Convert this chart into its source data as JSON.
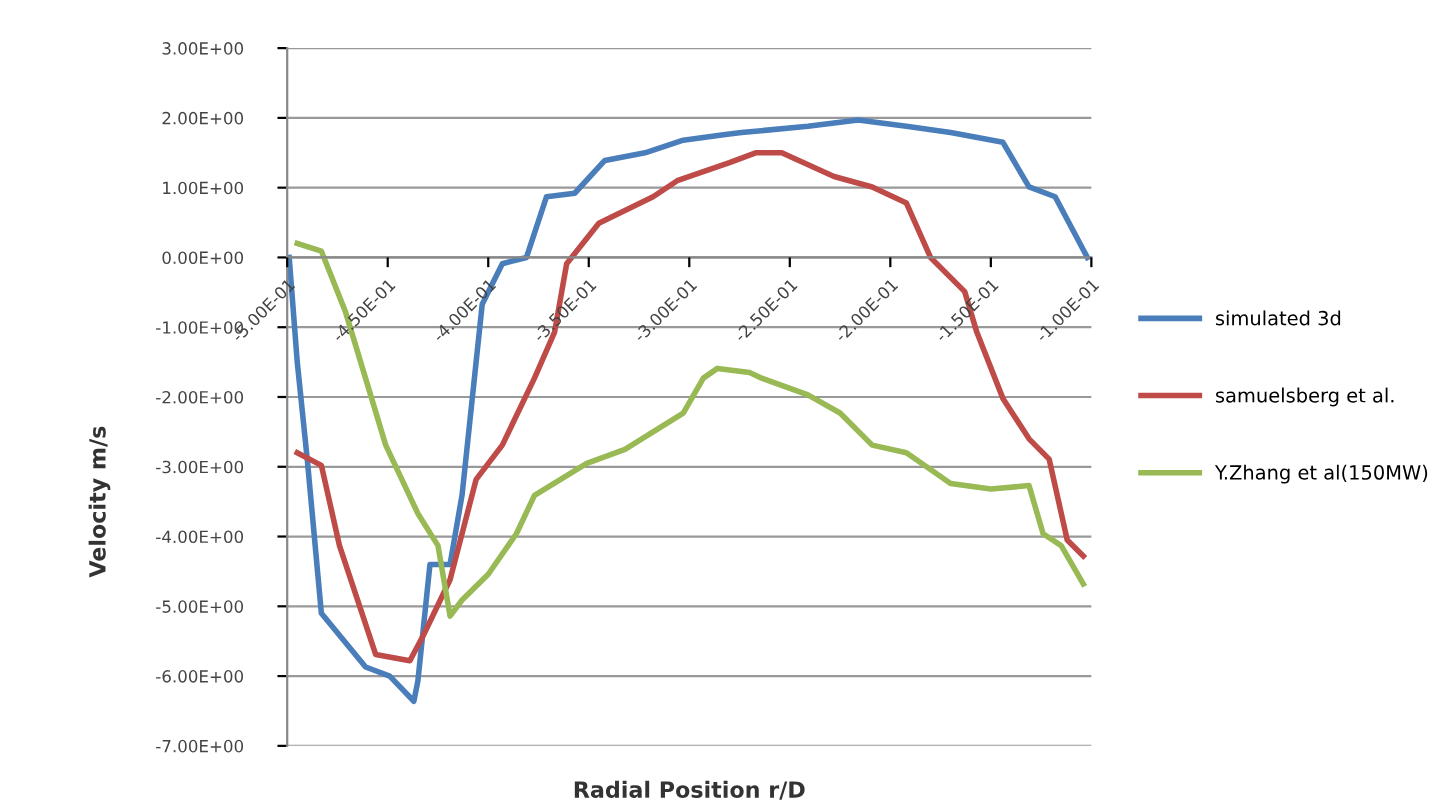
{
  "chart_data": {
    "type": "line",
    "xlabel": "Radial Position r/D",
    "ylabel": "Velocity m/s",
    "xlim": [
      -0.5,
      -0.1
    ],
    "ylim": [
      -7,
      3
    ],
    "xticks": [
      {
        "value": -0.5,
        "label": "-5.00E-01"
      },
      {
        "value": -0.45,
        "label": "-4.50E-01"
      },
      {
        "value": -0.4,
        "label": "-4.00E-01"
      },
      {
        "value": -0.35,
        "label": "-3.50E-01"
      },
      {
        "value": -0.3,
        "label": "-3.00E-01"
      },
      {
        "value": -0.25,
        "label": "-2.50E-01"
      },
      {
        "value": -0.2,
        "label": "-2.00E-01"
      },
      {
        "value": -0.15,
        "label": "-1.50E-01"
      },
      {
        "value": -0.1,
        "label": "-1.00E-01"
      }
    ],
    "yticks": [
      {
        "value": -7,
        "label": "-7.00E+00"
      },
      {
        "value": -6,
        "label": "-6.00E+00"
      },
      {
        "value": -5,
        "label": "-5.00E+00"
      },
      {
        "value": -4,
        "label": "-4.00E+00"
      },
      {
        "value": -3,
        "label": "-3.00E+00"
      },
      {
        "value": -2,
        "label": "-2.00E+00"
      },
      {
        "value": -1,
        "label": "-1.00E+00"
      },
      {
        "value": 0,
        "label": "0.00E+00"
      },
      {
        "value": 1,
        "label": "1.00E+00"
      },
      {
        "value": 2,
        "label": "2.00E+00"
      },
      {
        "value": 3,
        "label": "3.00E+00"
      }
    ],
    "grid": "y",
    "legend": "right",
    "marker": "none",
    "line_style": "solid",
    "series": [
      {
        "name": "simulated 3d",
        "color": "#4a7ebb",
        "x": [
          -0.499,
          -0.495,
          -0.49,
          -0.483,
          -0.461,
          -0.449,
          -0.437,
          -0.435,
          -0.429,
          -0.419,
          -0.413,
          -0.403,
          -0.393,
          -0.381,
          -0.371,
          -0.357,
          -0.342,
          -0.322,
          -0.303,
          -0.283,
          -0.274,
          -0.241,
          -0.216,
          -0.192,
          -0.17,
          -0.144,
          -0.131,
          -0.118,
          -0.102
        ],
        "values": [
          0,
          -1.5,
          -2.9,
          -5.1,
          -5.87,
          -6.0,
          -6.36,
          -6.07,
          -4.4,
          -4.4,
          -3.4,
          -0.67,
          -0.09,
          0,
          0.87,
          0.92,
          1.39,
          1.5,
          1.68,
          1.76,
          1.79,
          1.88,
          1.97,
          1.88,
          1.79,
          1.65,
          1.01,
          0.87,
          0
        ]
      },
      {
        "name": "samuelsberg et al.",
        "color": "#be4b48",
        "x": [
          -0.495,
          -0.483,
          -0.474,
          -0.456,
          -0.439,
          -0.432,
          -0.419,
          -0.406,
          -0.393,
          -0.377,
          -0.367,
          -0.361,
          -0.345,
          -0.318,
          -0.306,
          -0.28,
          -0.267,
          -0.254,
          -0.228,
          -0.209,
          -0.192,
          -0.18,
          -0.163,
          -0.157,
          -0.144,
          -0.131,
          -0.121,
          -0.112,
          -0.104
        ],
        "values": [
          -2.8,
          -2.98,
          -4.13,
          -5.69,
          -5.78,
          -5.4,
          -4.62,
          -3.18,
          -2.69,
          -1.73,
          -1.07,
          -0.09,
          0.49,
          0.87,
          1.1,
          1.36,
          1.5,
          1.5,
          1.16,
          1.01,
          0.78,
          0,
          -0.49,
          -1.07,
          -2.02,
          -2.6,
          -2.89,
          -4.05,
          -4.28
        ]
      },
      {
        "name": "Y.Zhang et al(150MW)",
        "color": "#98b954",
        "x": [
          -0.495,
          -0.483,
          -0.471,
          -0.458,
          -0.451,
          -0.435,
          -0.425,
          -0.419,
          -0.413,
          -0.4,
          -0.386,
          -0.377,
          -0.351,
          -0.332,
          -0.303,
          -0.293,
          -0.286,
          -0.27,
          -0.264,
          -0.241,
          -0.225,
          -0.209,
          -0.192,
          -0.17,
          -0.15,
          -0.131,
          -0.124,
          -0.115,
          -0.104
        ],
        "values": [
          0.2,
          0.09,
          -0.78,
          -2.02,
          -2.69,
          -3.67,
          -4.13,
          -5.14,
          -4.91,
          -4.54,
          -3.96,
          -3.41,
          -2.95,
          -2.75,
          -2.23,
          -1.73,
          -1.59,
          -1.65,
          -1.73,
          -1.97,
          -2.23,
          -2.69,
          -2.8,
          -3.24,
          -3.32,
          -3.27,
          -3.96,
          -4.13,
          -4.68
        ]
      }
    ]
  }
}
